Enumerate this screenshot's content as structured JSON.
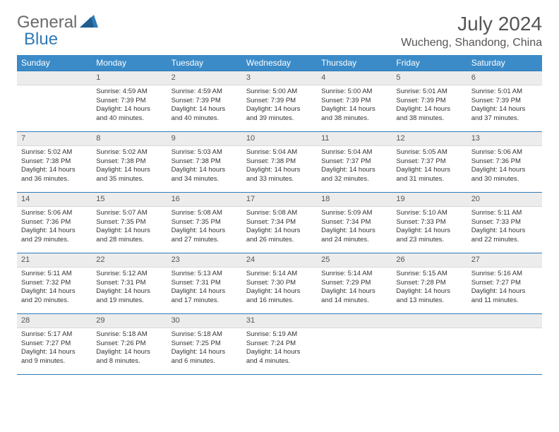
{
  "logo": {
    "part1": "General",
    "part2": "Blue"
  },
  "title": "July 2024",
  "location": "Wucheng, Shandong, China",
  "colors": {
    "header_bg": "#3b8bc8",
    "header_text": "#ffffff",
    "rule": "#2f7ab8",
    "daynum_bg": "#ececec",
    "logo_gray": "#6b6b6b",
    "logo_blue": "#2f7ab8"
  },
  "layout": {
    "columns": 7,
    "rows": 5,
    "first_weekday_index": 1,
    "title_fontsize": 28,
    "location_fontsize": 16,
    "th_fontsize": 12,
    "cell_fontsize": 9.5
  },
  "weekdays": [
    "Sunday",
    "Monday",
    "Tuesday",
    "Wednesday",
    "Thursday",
    "Friday",
    "Saturday"
  ],
  "days": [
    {
      "n": 1,
      "sunrise": "4:59 AM",
      "sunset": "7:39 PM",
      "daylight": "14 hours and 40 minutes."
    },
    {
      "n": 2,
      "sunrise": "4:59 AM",
      "sunset": "7:39 PM",
      "daylight": "14 hours and 40 minutes."
    },
    {
      "n": 3,
      "sunrise": "5:00 AM",
      "sunset": "7:39 PM",
      "daylight": "14 hours and 39 minutes."
    },
    {
      "n": 4,
      "sunrise": "5:00 AM",
      "sunset": "7:39 PM",
      "daylight": "14 hours and 38 minutes."
    },
    {
      "n": 5,
      "sunrise": "5:01 AM",
      "sunset": "7:39 PM",
      "daylight": "14 hours and 38 minutes."
    },
    {
      "n": 6,
      "sunrise": "5:01 AM",
      "sunset": "7:39 PM",
      "daylight": "14 hours and 37 minutes."
    },
    {
      "n": 7,
      "sunrise": "5:02 AM",
      "sunset": "7:38 PM",
      "daylight": "14 hours and 36 minutes."
    },
    {
      "n": 8,
      "sunrise": "5:02 AM",
      "sunset": "7:38 PM",
      "daylight": "14 hours and 35 minutes."
    },
    {
      "n": 9,
      "sunrise": "5:03 AM",
      "sunset": "7:38 PM",
      "daylight": "14 hours and 34 minutes."
    },
    {
      "n": 10,
      "sunrise": "5:04 AM",
      "sunset": "7:38 PM",
      "daylight": "14 hours and 33 minutes."
    },
    {
      "n": 11,
      "sunrise": "5:04 AM",
      "sunset": "7:37 PM",
      "daylight": "14 hours and 32 minutes."
    },
    {
      "n": 12,
      "sunrise": "5:05 AM",
      "sunset": "7:37 PM",
      "daylight": "14 hours and 31 minutes."
    },
    {
      "n": 13,
      "sunrise": "5:06 AM",
      "sunset": "7:36 PM",
      "daylight": "14 hours and 30 minutes."
    },
    {
      "n": 14,
      "sunrise": "5:06 AM",
      "sunset": "7:36 PM",
      "daylight": "14 hours and 29 minutes."
    },
    {
      "n": 15,
      "sunrise": "5:07 AM",
      "sunset": "7:35 PM",
      "daylight": "14 hours and 28 minutes."
    },
    {
      "n": 16,
      "sunrise": "5:08 AM",
      "sunset": "7:35 PM",
      "daylight": "14 hours and 27 minutes."
    },
    {
      "n": 17,
      "sunrise": "5:08 AM",
      "sunset": "7:34 PM",
      "daylight": "14 hours and 26 minutes."
    },
    {
      "n": 18,
      "sunrise": "5:09 AM",
      "sunset": "7:34 PM",
      "daylight": "14 hours and 24 minutes."
    },
    {
      "n": 19,
      "sunrise": "5:10 AM",
      "sunset": "7:33 PM",
      "daylight": "14 hours and 23 minutes."
    },
    {
      "n": 20,
      "sunrise": "5:11 AM",
      "sunset": "7:33 PM",
      "daylight": "14 hours and 22 minutes."
    },
    {
      "n": 21,
      "sunrise": "5:11 AM",
      "sunset": "7:32 PM",
      "daylight": "14 hours and 20 minutes."
    },
    {
      "n": 22,
      "sunrise": "5:12 AM",
      "sunset": "7:31 PM",
      "daylight": "14 hours and 19 minutes."
    },
    {
      "n": 23,
      "sunrise": "5:13 AM",
      "sunset": "7:31 PM",
      "daylight": "14 hours and 17 minutes."
    },
    {
      "n": 24,
      "sunrise": "5:14 AM",
      "sunset": "7:30 PM",
      "daylight": "14 hours and 16 minutes."
    },
    {
      "n": 25,
      "sunrise": "5:14 AM",
      "sunset": "7:29 PM",
      "daylight": "14 hours and 14 minutes."
    },
    {
      "n": 26,
      "sunrise": "5:15 AM",
      "sunset": "7:28 PM",
      "daylight": "14 hours and 13 minutes."
    },
    {
      "n": 27,
      "sunrise": "5:16 AM",
      "sunset": "7:27 PM",
      "daylight": "14 hours and 11 minutes."
    },
    {
      "n": 28,
      "sunrise": "5:17 AM",
      "sunset": "7:27 PM",
      "daylight": "14 hours and 9 minutes."
    },
    {
      "n": 29,
      "sunrise": "5:18 AM",
      "sunset": "7:26 PM",
      "daylight": "14 hours and 8 minutes."
    },
    {
      "n": 30,
      "sunrise": "5:18 AM",
      "sunset": "7:25 PM",
      "daylight": "14 hours and 6 minutes."
    },
    {
      "n": 31,
      "sunrise": "5:19 AM",
      "sunset": "7:24 PM",
      "daylight": "14 hours and 4 minutes."
    }
  ],
  "labels": {
    "sunrise": "Sunrise:",
    "sunset": "Sunset:",
    "daylight": "Daylight:"
  }
}
